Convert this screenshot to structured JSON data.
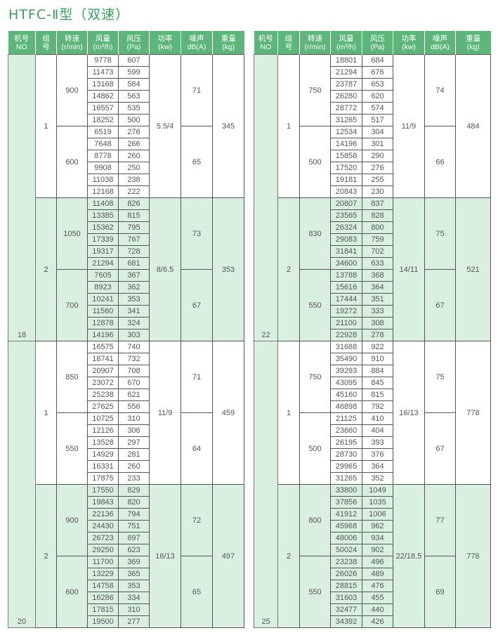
{
  "title": "HTFC-Ⅱ型（双速）",
  "headers": [
    [
      "机号",
      "NO"
    ],
    [
      "组",
      "号"
    ],
    [
      "转速",
      "(r/min)"
    ],
    [
      "风量",
      "(m³/h)"
    ],
    [
      "风压",
      "(Pa)"
    ],
    [
      "功率",
      "(kw)"
    ],
    [
      "噪声",
      "dB(A)"
    ],
    [
      "重量",
      "(kg)"
    ]
  ],
  "tables": [
    {
      "machines": [
        {
          "no": "18",
          "groups": [
            {
              "group": "1",
              "power": "5.5/4",
              "weight": "345",
              "speeds": [
                {
                  "speed": "900",
                  "noise": "71",
                  "rows": [
                    [
                      "9778",
                      "607"
                    ],
                    [
                      "11473",
                      "599"
                    ],
                    [
                      "13168",
                      "584"
                    ],
                    [
                      "14862",
                      "563"
                    ],
                    [
                      "16557",
                      "535"
                    ],
                    [
                      "18252",
                      "500"
                    ]
                  ]
                },
                {
                  "speed": "600",
                  "noise": "65",
                  "rows": [
                    [
                      "6519",
                      "276"
                    ],
                    [
                      "7648",
                      "266"
                    ],
                    [
                      "8778",
                      "260"
                    ],
                    [
                      "9908",
                      "250"
                    ],
                    [
                      "11038",
                      "238"
                    ],
                    [
                      "12168",
                      "222"
                    ]
                  ]
                }
              ]
            },
            {
              "group": "2",
              "power": "8/6.5",
              "weight": "353",
              "speeds": [
                {
                  "speed": "1050",
                  "noise": "73",
                  "rows": [
                    [
                      "11408",
                      "826"
                    ],
                    [
                      "13385",
                      "815"
                    ],
                    [
                      "15362",
                      "795"
                    ],
                    [
                      "17339",
                      "767"
                    ],
                    [
                      "19317",
                      "728"
                    ],
                    [
                      "21294",
                      "681"
                    ]
                  ]
                },
                {
                  "speed": "700",
                  "noise": "67",
                  "rows": [
                    [
                      "7605",
                      "367"
                    ],
                    [
                      "8923",
                      "362"
                    ],
                    [
                      "10241",
                      "353"
                    ],
                    [
                      "11560",
                      "341"
                    ],
                    [
                      "12878",
                      "324"
                    ],
                    [
                      "14196",
                      "303"
                    ]
                  ]
                }
              ]
            }
          ]
        },
        {
          "no": "20",
          "groups": [
            {
              "group": "1",
              "power": "11/9",
              "weight": "459",
              "speeds": [
                {
                  "speed": "850",
                  "noise": "71",
                  "rows": [
                    [
                      "16575",
                      "740"
                    ],
                    [
                      "18741",
                      "732"
                    ],
                    [
                      "20907",
                      "708"
                    ],
                    [
                      "23072",
                      "670"
                    ],
                    [
                      "25238",
                      "621"
                    ],
                    [
                      "27625",
                      "556"
                    ]
                  ]
                },
                {
                  "speed": "550",
                  "noise": "64",
                  "rows": [
                    [
                      "10725",
                      "310"
                    ],
                    [
                      "12126",
                      "306"
                    ],
                    [
                      "13528",
                      "297"
                    ],
                    [
                      "14929",
                      "281"
                    ],
                    [
                      "16331",
                      "260"
                    ],
                    [
                      "17875",
                      "233"
                    ]
                  ]
                }
              ]
            },
            {
              "group": "2",
              "power": "16/13",
              "weight": "497",
              "speeds": [
                {
                  "speed": "900",
                  "noise": "72",
                  "rows": [
                    [
                      "17550",
                      "829"
                    ],
                    [
                      "19843",
                      "820"
                    ],
                    [
                      "22136",
                      "794"
                    ],
                    [
                      "24430",
                      "751"
                    ],
                    [
                      "26723",
                      "697"
                    ],
                    [
                      "29250",
                      "623"
                    ]
                  ]
                },
                {
                  "speed": "600",
                  "noise": "65",
                  "rows": [
                    [
                      "11700",
                      "369"
                    ],
                    [
                      "13229",
                      "365"
                    ],
                    [
                      "14758",
                      "353"
                    ],
                    [
                      "16286",
                      "334"
                    ],
                    [
                      "17815",
                      "310"
                    ],
                    [
                      "19500",
                      "277"
                    ]
                  ]
                }
              ]
            }
          ]
        }
      ]
    },
    {
      "machines": [
        {
          "no": "22",
          "groups": [
            {
              "group": "1",
              "power": "11/9",
              "weight": "484",
              "speeds": [
                {
                  "speed": "750",
                  "noise": "74",
                  "rows": [
                    [
                      "18801",
                      "684"
                    ],
                    [
                      "21294",
                      "676"
                    ],
                    [
                      "23787",
                      "653"
                    ],
                    [
                      "26280",
                      "620"
                    ],
                    [
                      "28772",
                      "574"
                    ],
                    [
                      "31265",
                      "517"
                    ]
                  ]
                },
                {
                  "speed": "500",
                  "noise": "66",
                  "rows": [
                    [
                      "12534",
                      "304"
                    ],
                    [
                      "14196",
                      "301"
                    ],
                    [
                      "15858",
                      "290"
                    ],
                    [
                      "17520",
                      "276"
                    ],
                    [
                      "19181",
                      "255"
                    ],
                    [
                      "20843",
                      "230"
                    ]
                  ]
                }
              ]
            },
            {
              "group": "2",
              "power": "14/11",
              "weight": "521",
              "speeds": [
                {
                  "speed": "830",
                  "noise": "75",
                  "rows": [
                    [
                      "20807",
                      "837"
                    ],
                    [
                      "23565",
                      "828"
                    ],
                    [
                      "26324",
                      "800"
                    ],
                    [
                      "29083",
                      "759"
                    ],
                    [
                      "31841",
                      "702"
                    ],
                    [
                      "34600",
                      "633"
                    ]
                  ]
                },
                {
                  "speed": "550",
                  "noise": "67",
                  "rows": [
                    [
                      "13788",
                      "368"
                    ],
                    [
                      "15616",
                      "364"
                    ],
                    [
                      "17444",
                      "351"
                    ],
                    [
                      "19272",
                      "333"
                    ],
                    [
                      "21100",
                      "308"
                    ],
                    [
                      "22928",
                      "278"
                    ]
                  ]
                }
              ]
            }
          ]
        },
        {
          "no": "25",
          "groups": [
            {
              "group": "1",
              "power": "16/13",
              "weight": "778",
              "speeds": [
                {
                  "speed": "750",
                  "noise": "75",
                  "rows": [
                    [
                      "31688",
                      "922"
                    ],
                    [
                      "35490",
                      "910"
                    ],
                    [
                      "39293",
                      "884"
                    ],
                    [
                      "43095",
                      "845"
                    ],
                    [
                      "45160",
                      "815"
                    ],
                    [
                      "46898",
                      "792"
                    ]
                  ]
                },
                {
                  "speed": "500",
                  "noise": "67",
                  "rows": [
                    [
                      "21125",
                      "410"
                    ],
                    [
                      "23660",
                      "404"
                    ],
                    [
                      "26195",
                      "393"
                    ],
                    [
                      "28730",
                      "376"
                    ],
                    [
                      "29965",
                      "364"
                    ],
                    [
                      "31265",
                      "352"
                    ]
                  ]
                }
              ]
            },
            {
              "group": "2",
              "power": "22/18.5",
              "weight": "778",
              "speeds": [
                {
                  "speed": "800",
                  "noise": "77",
                  "rows": [
                    [
                      "33800",
                      "1049"
                    ],
                    [
                      "37856",
                      "1035"
                    ],
                    [
                      "41912",
                      "1006"
                    ],
                    [
                      "45968",
                      "962"
                    ],
                    [
                      "48006",
                      "934"
                    ],
                    [
                      "50024",
                      "902"
                    ]
                  ]
                },
                {
                  "speed": "550",
                  "noise": "69",
                  "rows": [
                    [
                      "23238",
                      "496"
                    ],
                    [
                      "26026",
                      "489"
                    ],
                    [
                      "28815",
                      "476"
                    ],
                    [
                      "31603",
                      "455"
                    ],
                    [
                      "32477",
                      "440"
                    ],
                    [
                      "34392",
                      "426"
                    ]
                  ]
                }
              ]
            }
          ]
        }
      ]
    }
  ]
}
